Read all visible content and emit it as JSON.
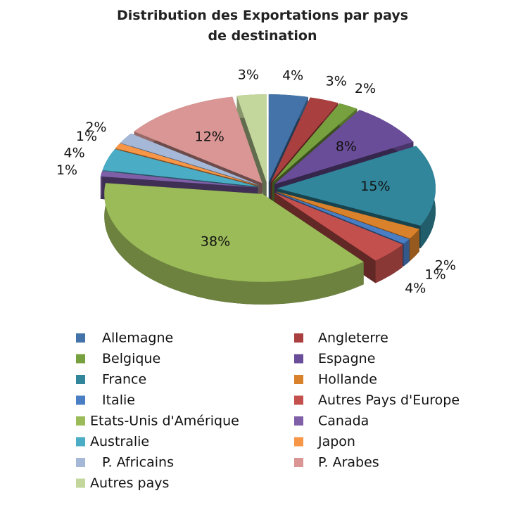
{
  "chart_data": {
    "type": "pie",
    "title": "Distribution des Exportations par pays de destination",
    "categories": [
      "Allemagne",
      "Angleterre",
      "Belgique",
      "Espagne",
      "France",
      "Hollande",
      "Italie",
      "Autres Pays d'Europe",
      "Etats-Unis d'Amérique",
      "Canada",
      "Australie",
      "Japon",
      "P. Africains",
      "P. Arabes",
      "Autres pays"
    ],
    "values": [
      4,
      3,
      2,
      8,
      15,
      2,
      1,
      4,
      38,
      1,
      4,
      1,
      2,
      12,
      3
    ],
    "value_labels": [
      "4%",
      "3%",
      "2%",
      "8%",
      "15%",
      "2%",
      "1%",
      "4%",
      "38%",
      "1%",
      "4%",
      "1%",
      "2%",
      "12%",
      "3%"
    ],
    "colors": [
      "#4373a8",
      "#a9403f",
      "#77a03f",
      "#6a4d98",
      "#31869b",
      "#d9812b",
      "#4a7ec4",
      "#c4504d",
      "#9bbb59",
      "#7e5fa8",
      "#4bacc6",
      "#f79646",
      "#a5b8d8",
      "#d99694",
      "#c3d69b"
    ]
  }
}
